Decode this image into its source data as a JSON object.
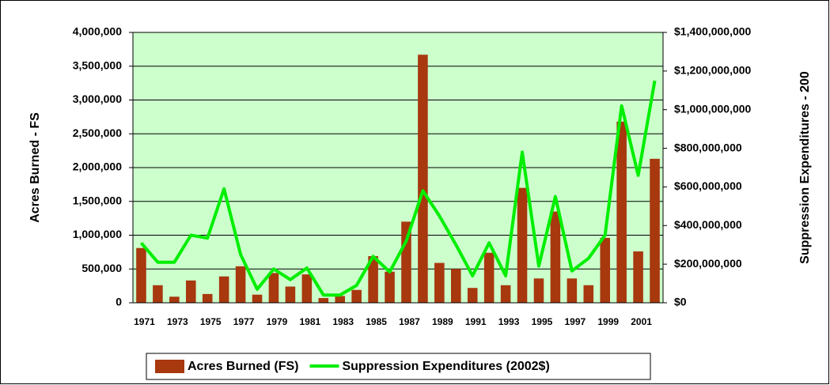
{
  "chart_data": {
    "type": "bar",
    "categories": [
      "1971",
      null,
      "1973",
      null,
      "1975",
      null,
      "1977",
      null,
      "1979",
      null,
      "1981",
      null,
      "1983",
      null,
      "1985",
      null,
      "1987",
      null,
      "1989",
      null,
      "1991",
      null,
      "1993",
      null,
      "1995",
      null,
      "1997",
      null,
      "1999",
      null,
      "2001",
      null
    ],
    "series": [
      {
        "name": "Acres Burned (FS)",
        "type": "bar",
        "color": "#a8380e",
        "values": [
          810000,
          260000,
          90000,
          330000,
          130000,
          390000,
          540000,
          120000,
          440000,
          240000,
          420000,
          70000,
          100000,
          190000,
          690000,
          460000,
          1200000,
          3670000,
          590000,
          500000,
          220000,
          740000,
          260000,
          1700000,
          360000,
          1350000,
          360000,
          260000,
          960000,
          2680000,
          760000,
          2130000
        ]
      },
      {
        "name": "Suppression Expenditures (2002$)",
        "type": "line",
        "axis": "y2",
        "color": "#00ee00",
        "values": [
          310000000,
          210000000,
          210000000,
          350000000,
          335000000,
          590000000,
          250000000,
          70000000,
          175000000,
          120000000,
          180000000,
          40000000,
          40000000,
          90000000,
          240000000,
          160000000,
          320000000,
          580000000,
          450000000,
          300000000,
          140000000,
          310000000,
          140000000,
          780000000,
          190000000,
          550000000,
          165000000,
          230000000,
          350000000,
          1020000000,
          660000000,
          1150000000
        ]
      }
    ],
    "ylabel": "Acres Burned - FS",
    "y2label": "Suppression Expenditures - 200",
    "ylim": [
      0,
      4000000
    ],
    "yticks": [
      0,
      {
        "value": 500000,
        "label": "500,000"
      },
      {
        "value": 1000000,
        "label": "1,000,000"
      },
      {
        "value": 1500000,
        "label": "1,500,000"
      },
      {
        "value": 2000000,
        "label": "2,000,000"
      },
      {
        "value": 2500000,
        "label": "2,500,000"
      },
      {
        "value": 3000000,
        "label": "3,000,000"
      },
      {
        "value": 3500000,
        "label": "3,500,000"
      },
      {
        "value": 4000000,
        "label": "4,000,000"
      }
    ],
    "y2lim": [
      0,
      1400000000
    ],
    "y2ticks": [
      {
        "value": 0,
        "label": "$0"
      },
      {
        "value": 200000000,
        "label": "$200,000,000"
      },
      {
        "value": 400000000,
        "label": "$400,000,000"
      },
      {
        "value": 600000000,
        "label": "$600,000,000"
      },
      {
        "value": 800000000,
        "label": "$800,000,000"
      },
      {
        "value": 1000000000,
        "label": "$1,000,000,000"
      },
      {
        "value": 1200000000,
        "label": "$1,200,000,000"
      },
      {
        "value": 1400000000,
        "label": "$1,400,000,000"
      }
    ],
    "grid": true,
    "background": "#ccffcc",
    "legend": "bottom"
  }
}
